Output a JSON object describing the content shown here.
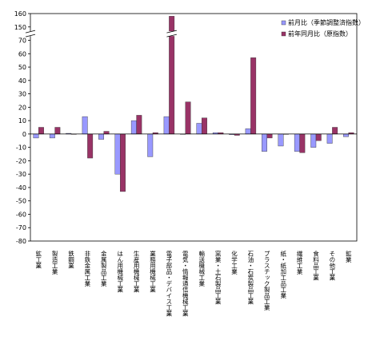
{
  "chart_data": {
    "type": "bar",
    "categories": [
      "鉱工業",
      "製造工業",
      "鉄鋼業",
      "非鉄金属工業",
      "金属製品工業",
      "はん用機械工業",
      "生産用機械工業",
      "業務用機械工業",
      "電子部品・デバイス工業",
      "電気・情報通信機械工業",
      "輸送機械工業",
      "窯業・土石製品工業",
      "化学工業",
      "石油・石炭製品工業",
      "プラスチック製品工業",
      "紙・紙加工品工業",
      "繊維工業",
      "食料品工業",
      "その他工業",
      "鉱業"
    ],
    "series": [
      {
        "name": "前月比（季節調整済指数）",
        "color": "#9999ff",
        "values": [
          -3,
          -3,
          0.5,
          13,
          -4,
          -30,
          10,
          -17,
          13,
          0,
          8,
          1,
          -0.5,
          4,
          -13,
          -9,
          -13,
          -10,
          -7,
          -2
        ]
      },
      {
        "name": "前年同月比（原指数）",
        "color": "#993366",
        "values": [
          5,
          5,
          0,
          -18,
          2,
          -43,
          14,
          1,
          158,
          24,
          12,
          1,
          -1,
          57,
          -3,
          0,
          -14,
          -5,
          5,
          1
        ]
      }
    ],
    "ylim": [
      -80,
      160
    ],
    "yticks": [
      -80,
      -70,
      -60,
      -50,
      -40,
      -30,
      -20,
      -10,
      0,
      10,
      20,
      30,
      40,
      50,
      60,
      70,
      150,
      160
    ],
    "axis_break": [
      70,
      150
    ],
    "legend": "top-right"
  }
}
